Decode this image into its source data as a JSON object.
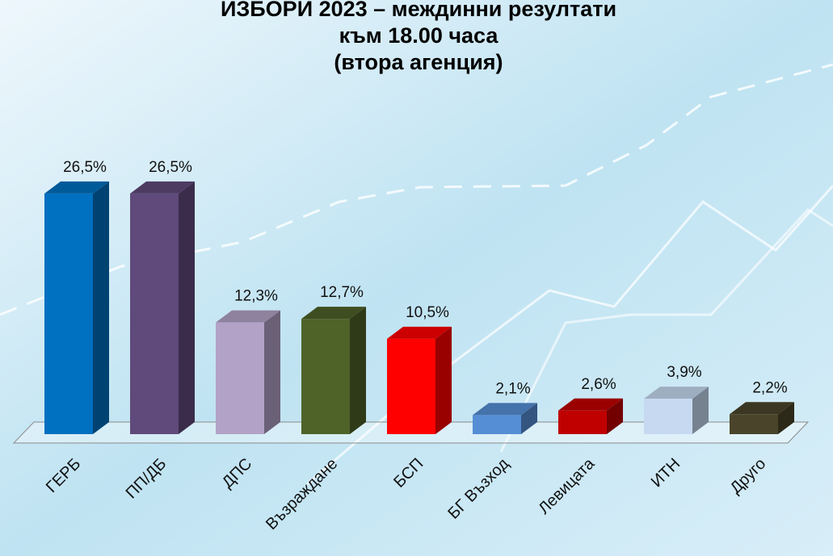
{
  "chart_data": {
    "type": "bar3d",
    "title_lines": [
      "ИЗБОРИ 2023 – междинни резултати",
      "към 18.00 часа",
      "(втора агенция)"
    ],
    "categories": [
      "ГЕРБ",
      "ПП/ДБ",
      "ДПС",
      "Възраждане",
      "БСП",
      "БГ Възход",
      "Левицата",
      "ИТН",
      "Друго"
    ],
    "values": [
      26.5,
      26.5,
      12.3,
      12.7,
      10.5,
      2.1,
      2.6,
      3.9,
      2.2
    ],
    "value_labels": [
      "26,5%",
      "26,5%",
      "12,3%",
      "12,7%",
      "10,5%",
      "2,1%",
      "2,6%",
      "3,9%",
      "2,2%"
    ],
    "colors": [
      "#0070c0",
      "#604a7b",
      "#b3a2c7",
      "#4f6228",
      "#ff0000",
      "#558ed5",
      "#c00000",
      "#c6d9f1",
      "#4a452a"
    ]
  }
}
